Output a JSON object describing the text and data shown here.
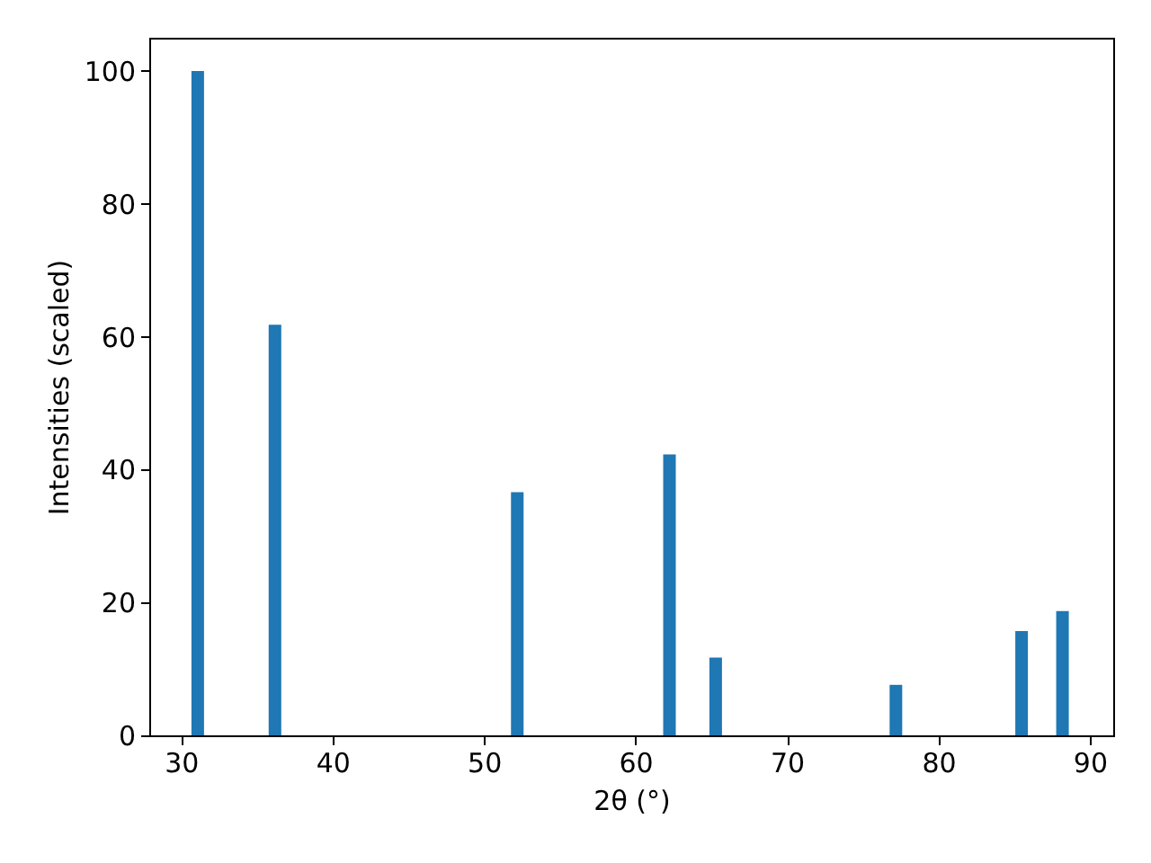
{
  "chart_data": {
    "type": "bar",
    "xlabel": "2θ (°)",
    "ylabel": "Intensities (scaled)",
    "x": [
      31.1,
      36.2,
      52.2,
      62.25,
      65.3,
      77.2,
      85.5,
      88.2
    ],
    "series": [
      {
        "color": "#1f77b4",
        "values": [
          100,
          61.8,
          36.6,
          42.3,
          11.7,
          7.6,
          15.7,
          18.7
        ]
      }
    ],
    "xlim": [
      27.9,
      91.55
    ],
    "xticks": [
      30,
      40,
      50,
      60,
      70,
      80,
      90
    ],
    "ylim": [
      0,
      105
    ],
    "yticks": [
      0,
      20,
      40,
      60,
      80,
      100
    ],
    "grid": false
  }
}
